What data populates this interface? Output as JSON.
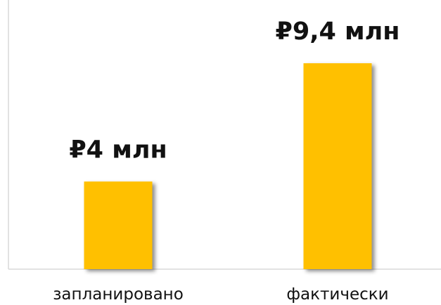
{
  "chart_data": {
    "type": "bar",
    "categories": [
      "запланировано",
      "фактически"
    ],
    "values": [
      4,
      9.4
    ],
    "value_labels": [
      "₽4 млн",
      "₽9,4 млн"
    ],
    "color": "#ffc000"
  }
}
